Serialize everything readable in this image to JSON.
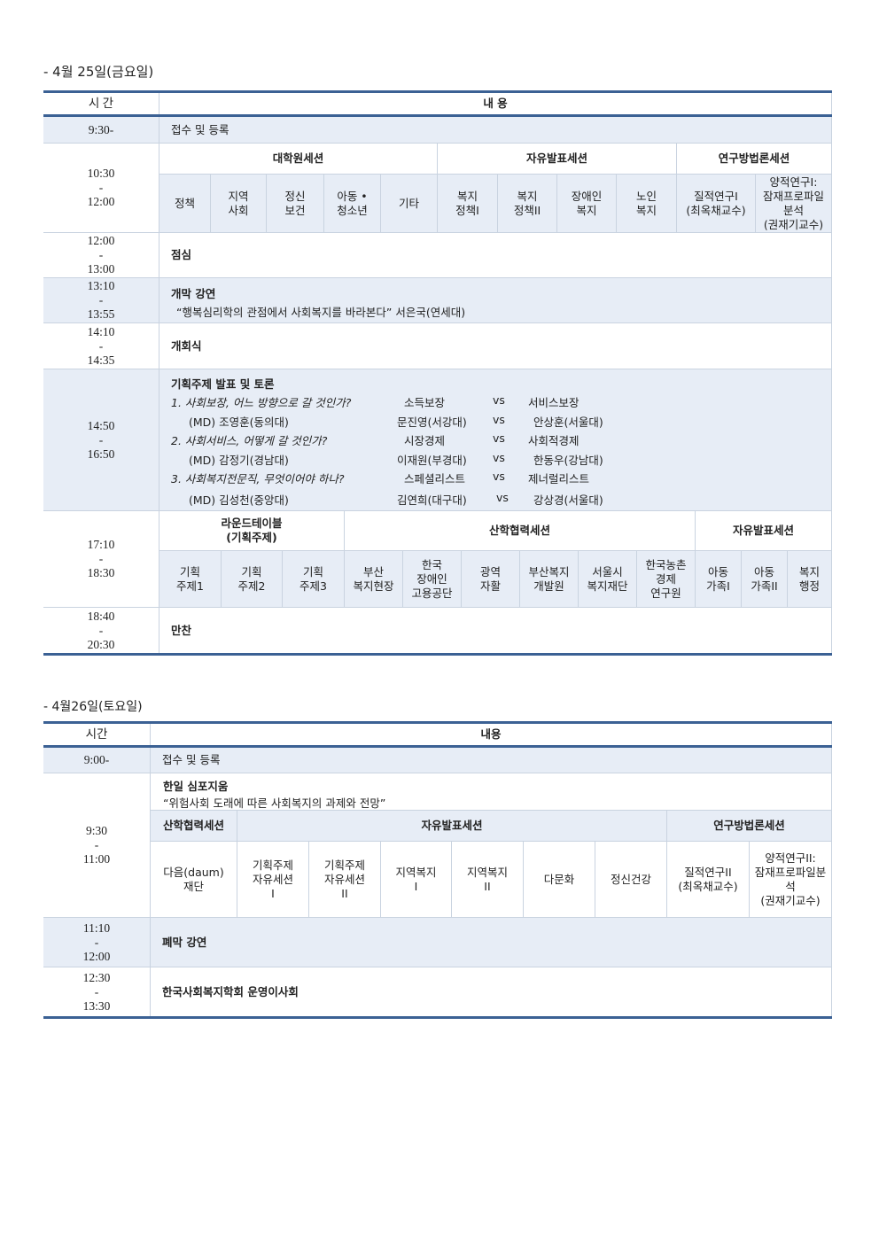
{
  "day1": {
    "heading": "- 4월 25일(금요일)",
    "header": {
      "time": "시 간",
      "content": "내 용"
    },
    "r1": {
      "time": "9:30-",
      "content": "접수 및 등록"
    },
    "r2": {
      "time": "10:30\n-\n12:00",
      "sessions": [
        "대학원세션",
        "자유발표세션",
        "연구방법론세션"
      ],
      "cells": [
        "정책",
        "지역\n사회",
        "정신\n보건",
        "아동 •\n청소년",
        "기타",
        "복지\n정책I",
        "복지\n정책II",
        "장애인\n복지",
        "노인\n복지",
        "질적연구I\n(최옥채교수)",
        "양적연구I:\n잠재프로파일\n분석\n(권재기교수)"
      ]
    },
    "r3": {
      "time": "12:00\n-\n13:00",
      "content": "점심"
    },
    "r4": {
      "time": "13:10\n-\n13:55",
      "title": "개막 강연",
      "sub": "“행복심리학의 관점에서 사회복지를 바라본다” 서은국(연세대)"
    },
    "r5": {
      "time": "14:10\n-\n14:35",
      "content": "개회식"
    },
    "r6": {
      "time": "14:50\n-\n16:50",
      "title": "기획주제 발표 및 토론",
      "topics": [
        {
          "q": "1. 사회보장, 어느 방향으로 갈 것인가?",
          "a": "소득보장",
          "vs": "vs",
          "b": "서비스보장",
          "md": "(MD) 조영훈(동의대)",
          "pa": "문진영(서강대)",
          "pb": "안상훈(서울대)"
        },
        {
          "q": "2. 사회서비스, 어떻게 갈 것인가?",
          "a": "시장경제",
          "vs": "vs",
          "b": "사회적경제",
          "md": "(MD) 감정기(경남대)",
          "pa": "이재원(부경대)",
          "pb": "한동우(강남대)"
        },
        {
          "q": "3. 사회복지전문직, 무엇이어야 하나?",
          "a": "스페셜리스트",
          "vs": "vs",
          "b": "제너럴리스트",
          "md": "(MD) 김성천(중앙대)",
          "pa": "김연희(대구대)",
          "pb": "강상경(서울대)"
        }
      ]
    },
    "r7": {
      "time": "17:10\n-\n18:30",
      "sessions": [
        "라운드테이블\n(기획주제)",
        "산학협력세션",
        "자유발표세션"
      ],
      "cells": [
        "기획\n주제1",
        "기획\n주제2",
        "기획\n주제3",
        "부산\n복지현장",
        "한국\n장애인\n고용공단",
        "광역\n자활",
        "부산복지\n개발원",
        "서울시\n복지재단",
        "한국농촌\n경제\n연구원",
        "아동\n가족I",
        "아동\n가족II",
        "복지\n행정"
      ]
    },
    "r8": {
      "time": "18:40\n-\n20:30",
      "content": "만찬"
    }
  },
  "day2": {
    "heading": "- 4월26일(토요일)",
    "header": {
      "time": "시간",
      "content": "내용"
    },
    "r1": {
      "time": "9:00-",
      "content": "접수 및 등록"
    },
    "r2": {
      "time": "9:30\n-\n11:00",
      "title": "한일 심포지움",
      "sub": "“위험사회 도래에 따른 사회복지의 과제와 전망”",
      "sessions": [
        "산학협력세션",
        "자유발표세션",
        "연구방법론세션"
      ],
      "cells": [
        "다음(daum)\n재단",
        "기획주제\n자유세션\nI",
        "기획주제\n자유세션\nII",
        "지역복지\nI",
        "지역복지\nII",
        "다문화",
        "정신건강",
        "질적연구II\n(최옥채교수)",
        "양적연구II:\n잠재프로파일분\n석\n(권재기교수)"
      ]
    },
    "r3": {
      "time": "11:10\n-\n12:00",
      "content": "폐막 강연"
    },
    "r4": {
      "time": "12:30\n-\n13:30",
      "content": "한국사회복지학회 운영이사회"
    }
  }
}
